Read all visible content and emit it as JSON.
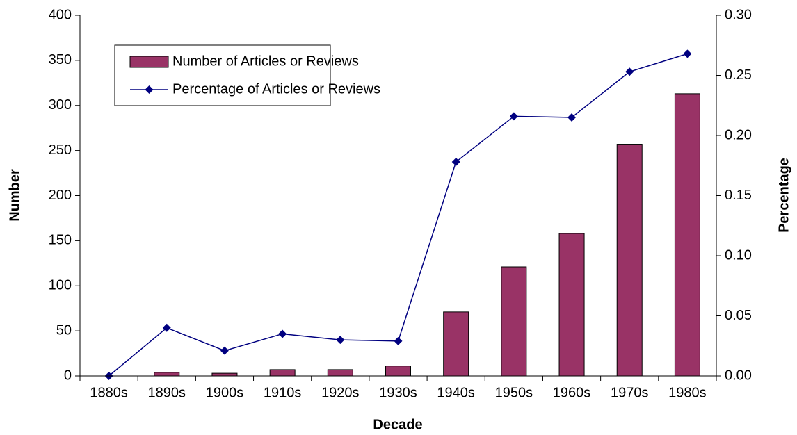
{
  "chart_data": {
    "type": "bar",
    "x_label": "Decade",
    "y_label": "Number",
    "y2_label": "Percentage",
    "categories": [
      "1880s",
      "1890s",
      "1900s",
      "1910s",
      "1920s",
      "1930s",
      "1940s",
      "1950s",
      "1960s",
      "1970s",
      "1980s"
    ],
    "series": [
      {
        "name": "Number of Articles or Reviews",
        "type": "bar",
        "color": "#993366",
        "values": [
          0,
          4,
          3,
          7,
          7,
          11,
          71,
          121,
          158,
          257,
          313
        ]
      },
      {
        "name": "Percentage of Articles or Reviews",
        "type": "line",
        "axis": "y2",
        "color": "#000080",
        "values": [
          0.0,
          0.04,
          0.021,
          0.035,
          0.03,
          0.029,
          0.178,
          0.216,
          0.215,
          0.253,
          0.268
        ]
      }
    ],
    "ylim": [
      0,
      400
    ],
    "yticks": [
      0,
      50,
      100,
      150,
      200,
      250,
      300,
      350,
      400
    ],
    "y2lim": [
      0,
      0.3
    ],
    "y2ticks": [
      {
        "value": 0,
        "label": "0.00"
      },
      {
        "value": 0.05,
        "label": "0.05"
      },
      {
        "value": 0.1,
        "label": "0.10"
      },
      {
        "value": 0.15,
        "label": "0.15"
      },
      {
        "value": 0.2,
        "label": "0.20"
      },
      {
        "value": 0.25,
        "label": "0.25"
      },
      {
        "value": 0.3,
        "label": "0.30"
      }
    ],
    "grid": false,
    "legend": "upper left"
  }
}
